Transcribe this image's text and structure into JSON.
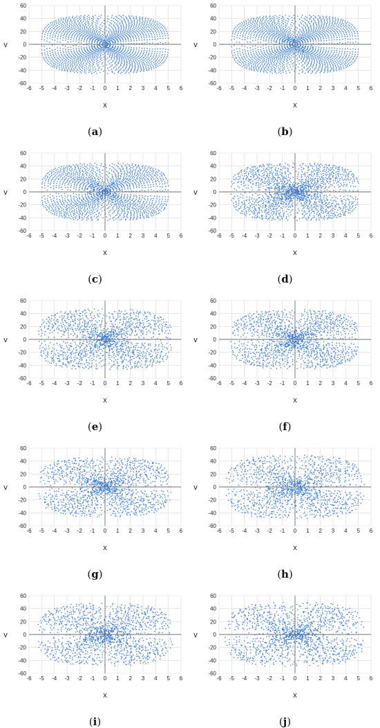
{
  "colors": {
    "series": "#3a7ee0",
    "grid": "#d9d9d9",
    "axis": "#6e6e6e",
    "text": "#222222",
    "background": "#ffffff"
  },
  "chart_data": [
    {
      "type": "scatter",
      "caption": {
        "open": "(",
        "letter": "a",
        "close": ")"
      },
      "xlabel": "x",
      "ylabel": "v",
      "xlim": [
        -6,
        6
      ],
      "ylim": [
        -60,
        60
      ],
      "xticks": [
        "-6",
        "-5",
        "-4",
        "-3",
        "-2",
        "-1",
        "0",
        "1",
        "2",
        "3",
        "4",
        "5",
        "6"
      ],
      "yticks": [
        "60",
        "40",
        "20",
        "0",
        "-20",
        "-40",
        "-60"
      ],
      "grid": true,
      "series": [
        {
          "x_amplitude": 5.0,
          "v_amplitude": 45,
          "orbit_count": 24,
          "chaos_level": 0.0,
          "center_density": 0.1
        }
      ]
    },
    {
      "type": "scatter",
      "caption": {
        "open": "(",
        "letter": "b",
        "close": ")"
      },
      "xlabel": "x",
      "ylabel": "v",
      "xlim": [
        -6,
        6
      ],
      "ylim": [
        -60,
        60
      ],
      "xticks": [
        "-6",
        "-5",
        "-4",
        "-3",
        "-2",
        "-1",
        "0",
        "1",
        "2",
        "3",
        "4",
        "5",
        "6"
      ],
      "yticks": [
        "60",
        "40",
        "20",
        "0",
        "-20",
        "-40",
        "-60"
      ],
      "grid": true,
      "series": [
        {
          "x_amplitude": 5.0,
          "v_amplitude": 45,
          "orbit_count": 24,
          "chaos_level": 0.05,
          "center_density": 0.12
        }
      ]
    },
    {
      "type": "scatter",
      "caption": {
        "open": "(",
        "letter": "c",
        "close": ")"
      },
      "xlabel": "x",
      "ylabel": "v",
      "xlim": [
        -6,
        6
      ],
      "ylim": [
        -60,
        60
      ],
      "xticks": [
        "-6",
        "-5",
        "-4",
        "-3",
        "-2",
        "-1",
        "0",
        "1",
        "2",
        "3",
        "4",
        "5",
        "6"
      ],
      "yticks": [
        "60",
        "40",
        "20",
        "0",
        "-20",
        "-40",
        "-60"
      ],
      "grid": true,
      "series": [
        {
          "x_amplitude": 5.0,
          "v_amplitude": 44,
          "orbit_count": 22,
          "chaos_level": 0.15,
          "center_density": 0.2
        }
      ]
    },
    {
      "type": "scatter",
      "caption": {
        "open": "(",
        "letter": "d",
        "close": ")"
      },
      "xlabel": "x",
      "ylabel": "v",
      "xlim": [
        -6,
        6
      ],
      "ylim": [
        -60,
        60
      ],
      "xticks": [
        "-6",
        "-5",
        "-4",
        "-3",
        "-2",
        "-1",
        "0",
        "1",
        "2",
        "3",
        "4",
        "5",
        "6"
      ],
      "yticks": [
        "60",
        "40",
        "20",
        "0",
        "-20",
        "-40",
        "-60"
      ],
      "grid": true,
      "series": [
        {
          "x_amplitude": 5.0,
          "v_amplitude": 44,
          "orbit_count": 22,
          "chaos_level": 0.3,
          "center_density": 0.5
        }
      ]
    },
    {
      "type": "scatter",
      "caption": {
        "open": "(",
        "letter": "e",
        "close": ")"
      },
      "xlabel": "x",
      "ylabel": "v",
      "xlim": [
        -6,
        6
      ],
      "ylim": [
        -60,
        60
      ],
      "xticks": [
        "-6",
        "-5",
        "-4",
        "-3",
        "-2",
        "-1",
        "0",
        "1",
        "2",
        "3",
        "4",
        "5",
        "6"
      ],
      "yticks": [
        "60",
        "40",
        "20",
        "0",
        "-20",
        "-40",
        "-60"
      ],
      "grid": true,
      "series": [
        {
          "x_amplitude": 5.2,
          "v_amplitude": 46,
          "orbit_count": 20,
          "chaos_level": 0.45,
          "center_density": 0.3
        }
      ]
    },
    {
      "type": "scatter",
      "caption": {
        "open": "(",
        "letter": "f",
        "close": ")"
      },
      "xlabel": "x",
      "ylabel": "v",
      "xlim": [
        -6,
        6
      ],
      "ylim": [
        -60,
        60
      ],
      "xticks": [
        "-6",
        "-5",
        "-4",
        "-3",
        "-2",
        "-1",
        "0",
        "1",
        "2",
        "3",
        "4",
        "5",
        "6"
      ],
      "yticks": [
        "60",
        "40",
        "20",
        "0",
        "-20",
        "-40",
        "-60"
      ],
      "grid": true,
      "series": [
        {
          "x_amplitude": 5.0,
          "v_amplitude": 45,
          "orbit_count": 20,
          "chaos_level": 0.4,
          "center_density": 0.3
        }
      ]
    },
    {
      "type": "scatter",
      "caption": {
        "open": "(",
        "letter": "g",
        "close": ")"
      },
      "xlabel": "x",
      "ylabel": "v",
      "xlim": [
        -6,
        6
      ],
      "ylim": [
        -60,
        60
      ],
      "xticks": [
        "-6",
        "-5",
        "-4",
        "-3",
        "-2",
        "-1",
        "0",
        "1",
        "2",
        "3",
        "4",
        "5",
        "6"
      ],
      "yticks": [
        "60",
        "40",
        "20",
        "0",
        "-20",
        "-40",
        "-60"
      ],
      "grid": true,
      "series": [
        {
          "x_amplitude": 5.1,
          "v_amplitude": 45,
          "orbit_count": 20,
          "chaos_level": 0.5,
          "center_density": 0.35
        }
      ]
    },
    {
      "type": "scatter",
      "caption": {
        "open": "(",
        "letter": "h",
        "close": ")"
      },
      "xlabel": "x",
      "ylabel": "v",
      "xlim": [
        -6,
        6
      ],
      "ylim": [
        -60,
        60
      ],
      "xticks": [
        "-6",
        "-5",
        "-4",
        "-3",
        "-2",
        "-1",
        "0",
        "1",
        "2",
        "3",
        "4",
        "5",
        "6"
      ],
      "yticks": [
        "60",
        "40",
        "20",
        "0",
        "-20",
        "-40",
        "-60"
      ],
      "grid": true,
      "series": [
        {
          "x_amplitude": 5.3,
          "v_amplitude": 48,
          "orbit_count": 20,
          "chaos_level": 0.6,
          "center_density": 0.4
        }
      ]
    },
    {
      "type": "scatter",
      "caption": {
        "open": "(",
        "letter": "i",
        "close": ")"
      },
      "xlabel": "x",
      "ylabel": "v",
      "xlim": [
        -6,
        6
      ],
      "ylim": [
        -60,
        60
      ],
      "xticks": [
        "-6",
        "-5",
        "-4",
        "-3",
        "-2",
        "-1",
        "0",
        "1",
        "2",
        "3",
        "4",
        "5",
        "6"
      ],
      "yticks": [
        "60",
        "40",
        "20",
        "0",
        "-20",
        "-40",
        "-60"
      ],
      "grid": true,
      "series": [
        {
          "x_amplitude": 5.2,
          "v_amplitude": 47,
          "orbit_count": 20,
          "chaos_level": 0.65,
          "center_density": 0.4
        }
      ]
    },
    {
      "type": "scatter",
      "caption": {
        "open": "(",
        "letter": "j",
        "close": ")"
      },
      "xlabel": "x",
      "ylabel": "v",
      "xlim": [
        -6,
        6
      ],
      "ylim": [
        -60,
        60
      ],
      "xticks": [
        "-6",
        "-5",
        "-4",
        "-3",
        "-2",
        "-1",
        "0",
        "1",
        "2",
        "3",
        "4",
        "5",
        "6"
      ],
      "yticks": [
        "60",
        "40",
        "20",
        "0",
        "-20",
        "-40",
        "-60"
      ],
      "grid": true,
      "series": [
        {
          "x_amplitude": 5.3,
          "v_amplitude": 48,
          "orbit_count": 20,
          "chaos_level": 0.75,
          "center_density": 0.45
        }
      ]
    }
  ]
}
